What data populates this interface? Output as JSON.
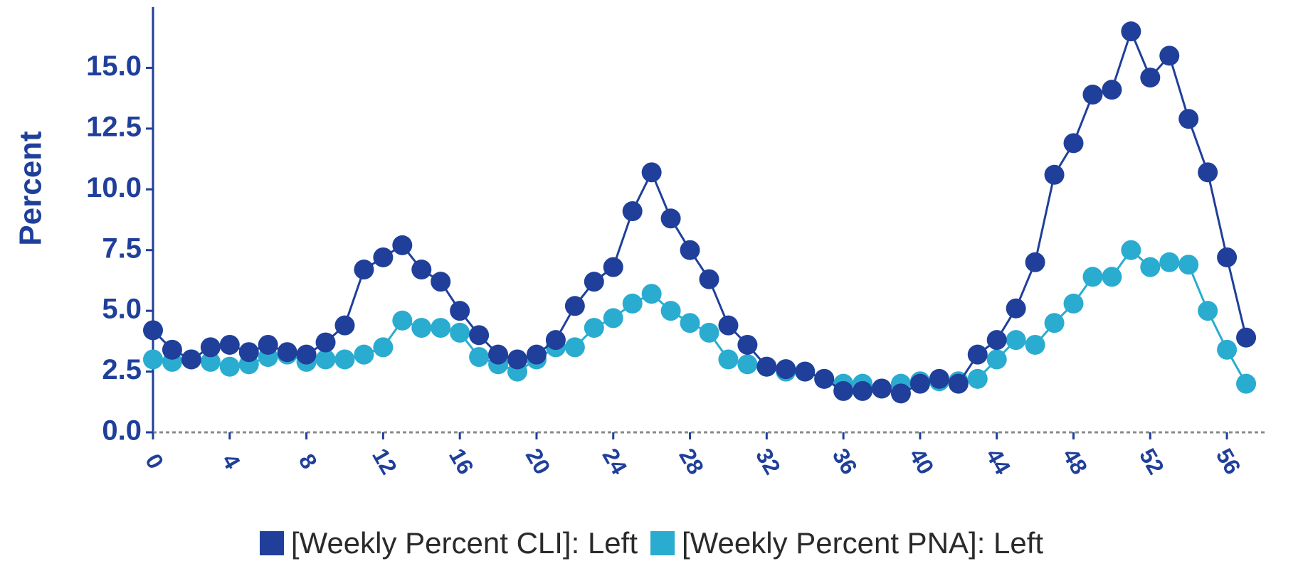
{
  "chart_data": {
    "type": "line",
    "title": "",
    "xlabel": "",
    "ylabel": "Percent",
    "xlim": [
      0,
      58
    ],
    "ylim": [
      0,
      17.5
    ],
    "x_ticks": [
      0,
      4,
      8,
      12,
      16,
      20,
      24,
      28,
      32,
      36,
      40,
      44,
      48,
      52,
      56
    ],
    "y_ticks": [
      "0.0",
      "2.5",
      "5.0",
      "7.5",
      "10.0",
      "12.5",
      "15.0"
    ],
    "grid": false,
    "legend_position": "bottom",
    "x": [
      0,
      1,
      2,
      3,
      4,
      5,
      6,
      7,
      8,
      9,
      10,
      11,
      12,
      13,
      14,
      15,
      16,
      17,
      18,
      19,
      20,
      21,
      22,
      23,
      24,
      25,
      26,
      27,
      28,
      29,
      30,
      31,
      32,
      33,
      34,
      35,
      36,
      37,
      38,
      39,
      40,
      41,
      42,
      43,
      44,
      45,
      46,
      47,
      48,
      49,
      50,
      51,
      52,
      53,
      54,
      55,
      56,
      57
    ],
    "series": [
      {
        "name": "[Weekly Percent CLI]: Left",
        "color": "#1f3f9a",
        "values": [
          4.2,
          3.4,
          3.0,
          3.5,
          3.6,
          3.3,
          3.6,
          3.3,
          3.2,
          3.7,
          4.4,
          6.7,
          7.2,
          7.7,
          6.7,
          6.2,
          5.0,
          4.0,
          3.2,
          3.0,
          3.2,
          3.8,
          5.2,
          6.2,
          6.8,
          9.1,
          10.7,
          8.8,
          7.5,
          6.3,
          4.4,
          3.6,
          2.7,
          2.6,
          2.5,
          2.2,
          1.7,
          1.7,
          1.8,
          1.6,
          2.0,
          2.2,
          2.0,
          3.2,
          3.8,
          5.1,
          7.0,
          10.6,
          11.9,
          13.9,
          14.1,
          16.5,
          14.6,
          15.5,
          12.9,
          10.7,
          7.2,
          3.9
        ]
      },
      {
        "name": "[Weekly Percent PNA]: Left",
        "color": "#29acd0",
        "values": [
          3.0,
          2.9,
          3.0,
          2.9,
          2.7,
          2.8,
          3.1,
          3.2,
          2.9,
          3.0,
          3.0,
          3.2,
          3.5,
          4.6,
          4.3,
          4.3,
          4.1,
          3.1,
          2.8,
          2.5,
          3.0,
          3.5,
          3.5,
          4.3,
          4.7,
          5.3,
          5.7,
          5.0,
          4.5,
          4.1,
          3.0,
          2.8,
          2.7,
          2.5,
          2.5,
          2.2,
          2.0,
          2.0,
          1.8,
          2.0,
          2.1,
          2.1,
          2.1,
          2.2,
          3.0,
          3.8,
          3.6,
          4.5,
          5.3,
          6.4,
          6.4,
          7.5,
          6.8,
          7.0,
          6.9,
          5.0,
          3.4,
          2.0
        ]
      }
    ]
  }
}
